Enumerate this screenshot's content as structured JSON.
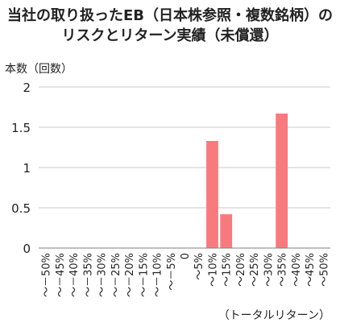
{
  "chart_data": {
    "type": "bar",
    "title_lines": [
      "当社の取り扱ったEB（日本株参照・複数銘柄）の",
      "リスクとリターン実績（未償還）"
    ],
    "ylabel": "本数（回数）",
    "xlabel": "（トータルリターン）",
    "ylim": [
      0,
      2
    ],
    "yticks": [
      "0",
      "0.5",
      "1",
      "1.5",
      "2"
    ],
    "ytick_values": [
      0,
      0.5,
      1,
      1.5,
      2
    ],
    "grid": true,
    "bar_color": "#f77b7e",
    "categories": [
      "～－50%",
      "～－45%",
      "～－40%",
      "～－35%",
      "～－30%",
      "～－25%",
      "～－20%",
      "～－15%",
      "～－10%",
      "～－5%",
      "0",
      "～5%",
      "～10%",
      "～15%",
      "～20%",
      "～25%",
      "～30%",
      "～35%",
      "～40%",
      "～45%",
      "～50%"
    ],
    "values": [
      0,
      0,
      0,
      0,
      0,
      0,
      0,
      0,
      0,
      0,
      0,
      0,
      1.33,
      0.42,
      0,
      0,
      0,
      1.67,
      0,
      0,
      0
    ]
  }
}
